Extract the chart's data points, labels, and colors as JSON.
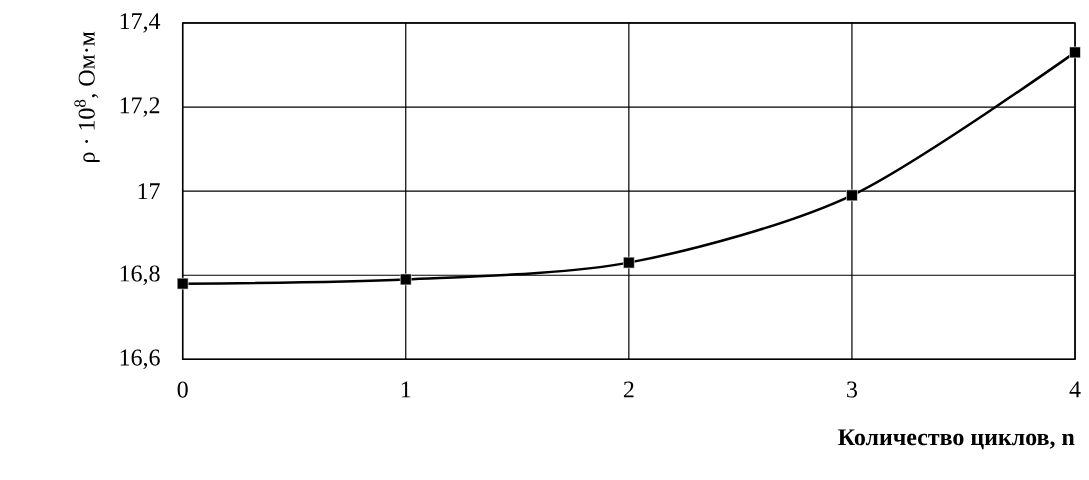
{
  "chart_data": {
    "type": "line",
    "xlabel": "Количество циклов, n",
    "ylabel": "ρ · 10$^{8}$, Ом·м",
    "x": [
      0,
      1,
      2,
      3,
      4
    ],
    "series": [
      {
        "color": "#000000",
        "values": [
          16.78,
          16.79,
          16.83,
          16.99,
          17.33
        ]
      }
    ],
    "xlim": [
      0,
      4
    ],
    "xticks": [
      0,
      1,
      2,
      3,
      4
    ],
    "ylim": [
      16.6,
      17.4
    ],
    "yticks": [
      {
        "value": 16.6,
        "label": "16,6"
      },
      {
        "value": 16.8,
        "label": "16,8"
      },
      17,
      {
        "value": 17.2,
        "label": "17,2"
      },
      {
        "value": 17.4,
        "label": "17,4"
      }
    ],
    "grid": true,
    "marker": "square",
    "line_style": "solid"
  }
}
